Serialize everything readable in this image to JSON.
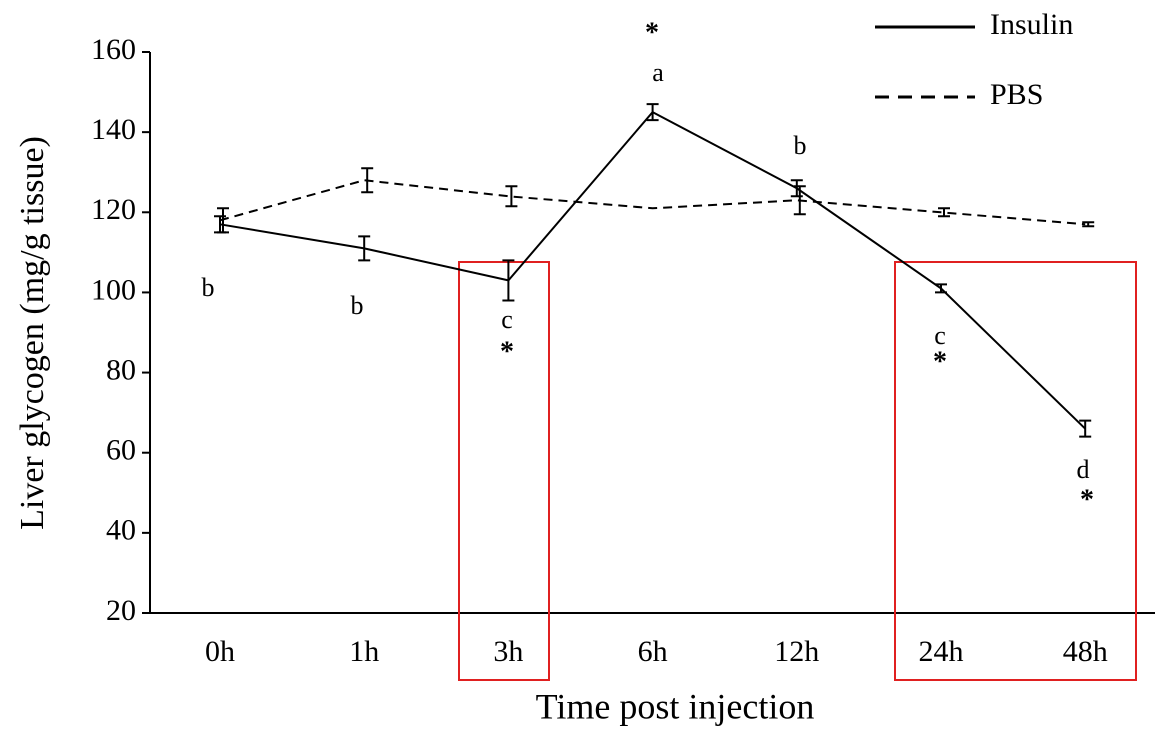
{
  "chart_data": {
    "type": "line",
    "y_label": "Liver glycogen (mg/g tissue)",
    "x_label": "Time post injection",
    "categories": [
      "0h",
      "1h",
      "3h",
      "6h",
      "12h",
      "24h",
      "48h"
    ],
    "series": [
      {
        "name": "Insulin",
        "color": "#000000",
        "dash": false,
        "values": [
          117,
          111,
          103,
          145,
          126,
          101,
          66
        ],
        "errors": [
          2,
          3,
          5,
          2,
          2,
          1,
          2
        ],
        "letters": [
          "b",
          "b",
          "c",
          "a",
          "b",
          "c",
          "d"
        ],
        "stars": [
          null,
          null,
          "*",
          "*",
          null,
          "*",
          "*"
        ]
      },
      {
        "name": "PBS",
        "color": "#000000",
        "dash": true,
        "values": [
          118,
          128,
          124,
          121,
          123,
          120,
          117
        ],
        "errors": [
          3,
          3,
          2.5,
          null,
          3.5,
          1,
          0.5
        ]
      }
    ],
    "ylim": [
      20,
      160
    ],
    "yticks": [
      20,
      40,
      60,
      80,
      100,
      120,
      140,
      160
    ],
    "highlight_color": "#e02020"
  }
}
